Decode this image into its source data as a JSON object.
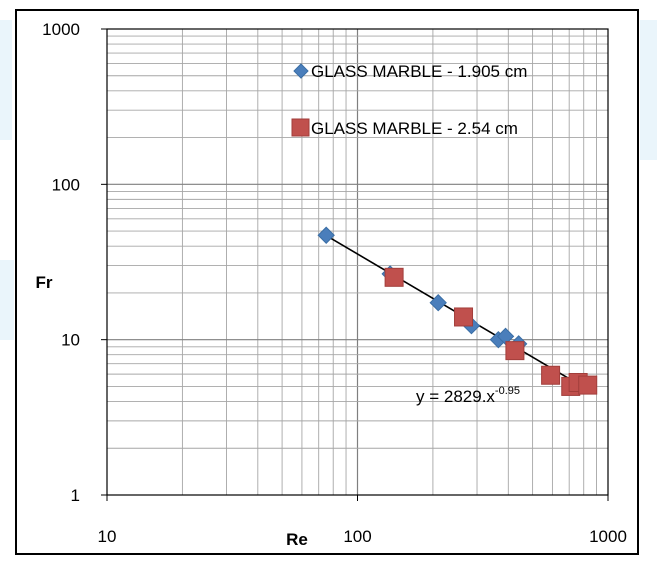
{
  "chart_data": {
    "type": "scatter",
    "x_scale": "log",
    "y_scale": "log",
    "xlim": [
      10,
      1000
    ],
    "ylim": [
      1,
      1000
    ],
    "x_ticks": [
      "10",
      "100",
      "1000"
    ],
    "y_ticks": [
      "1",
      "10",
      "100",
      "1000"
    ],
    "xlabel": "Re",
    "ylabel": "Fr",
    "grid": true,
    "legend_position": "top-right",
    "series": [
      {
        "name": "GLASS MARBLE - 1.905 cm",
        "marker": "diamond",
        "color": "#4a7ebb",
        "points": [
          {
            "x": 75,
            "y": 47
          },
          {
            "x": 135,
            "y": 26.5
          },
          {
            "x": 210,
            "y": 17.3
          },
          {
            "x": 285,
            "y": 12.3
          },
          {
            "x": 365,
            "y": 10.0
          },
          {
            "x": 390,
            "y": 10.5
          },
          {
            "x": 440,
            "y": 9.4
          }
        ]
      },
      {
        "name": "GLASS MARBLE - 2.54 cm",
        "marker": "square",
        "color": "#c0504d",
        "points": [
          {
            "x": 140,
            "y": 25.2
          },
          {
            "x": 265,
            "y": 14.0
          },
          {
            "x": 425,
            "y": 8.5
          },
          {
            "x": 590,
            "y": 5.9
          },
          {
            "x": 710,
            "y": 5.0
          },
          {
            "x": 760,
            "y": 5.3
          },
          {
            "x": 830,
            "y": 5.1
          }
        ]
      }
    ],
    "trendline": {
      "equation_base": "y = 2829.x",
      "equation_exponent": "-0.95",
      "a": 2829,
      "b": -0.95,
      "x_range": [
        75,
        850
      ],
      "color": "#000000"
    }
  }
}
